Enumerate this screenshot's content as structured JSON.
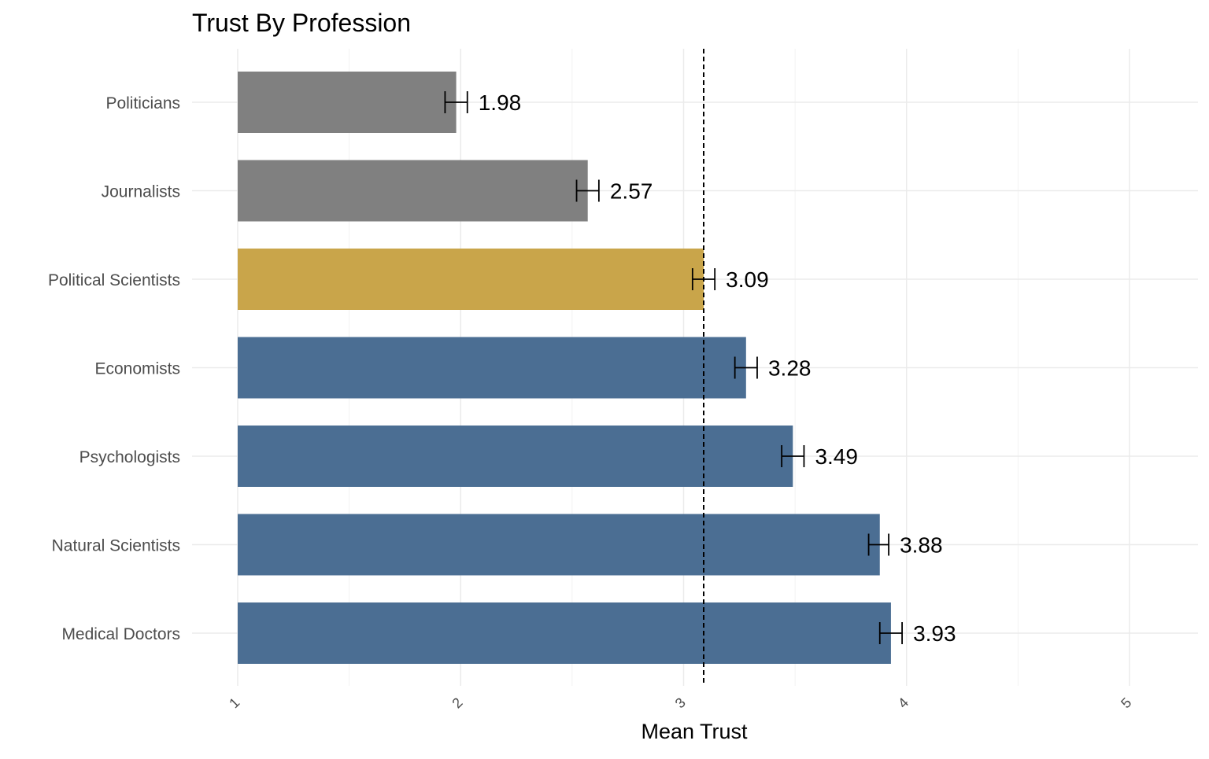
{
  "chart_data": {
    "type": "bar",
    "orientation": "horizontal",
    "title": "Trust By Profession",
    "xlabel": "Mean Trust",
    "ylabel": "",
    "xlim": [
      1,
      5
    ],
    "x_ticks": [
      1,
      2,
      3,
      4,
      5
    ],
    "x_tick_labels": [
      "1",
      "2",
      "3",
      "4",
      "5"
    ],
    "grid": true,
    "legend": "none",
    "reference_line": {
      "value": 3.09,
      "style": "dashed"
    },
    "categories": [
      "Politicians",
      "Journalists",
      "Political Scientists",
      "Economists",
      "Psychologists",
      "Natural Scientists",
      "Medical Doctors"
    ],
    "values": [
      1.98,
      2.57,
      3.09,
      3.28,
      3.49,
      3.88,
      3.93
    ],
    "value_labels": [
      "1.98",
      "2.57",
      "3.09",
      "3.28",
      "3.49",
      "3.88",
      "3.93"
    ],
    "error_bars": [
      [
        1.93,
        2.03
      ],
      [
        2.52,
        2.62
      ],
      [
        3.04,
        3.14
      ],
      [
        3.23,
        3.33
      ],
      [
        3.44,
        3.54
      ],
      [
        3.83,
        3.92
      ],
      [
        3.88,
        3.98
      ]
    ],
    "bar_colors": [
      "#808080",
      "#808080",
      "#c9a54a",
      "#4b6e93",
      "#4b6e93",
      "#4b6e93",
      "#4b6e93"
    ]
  }
}
